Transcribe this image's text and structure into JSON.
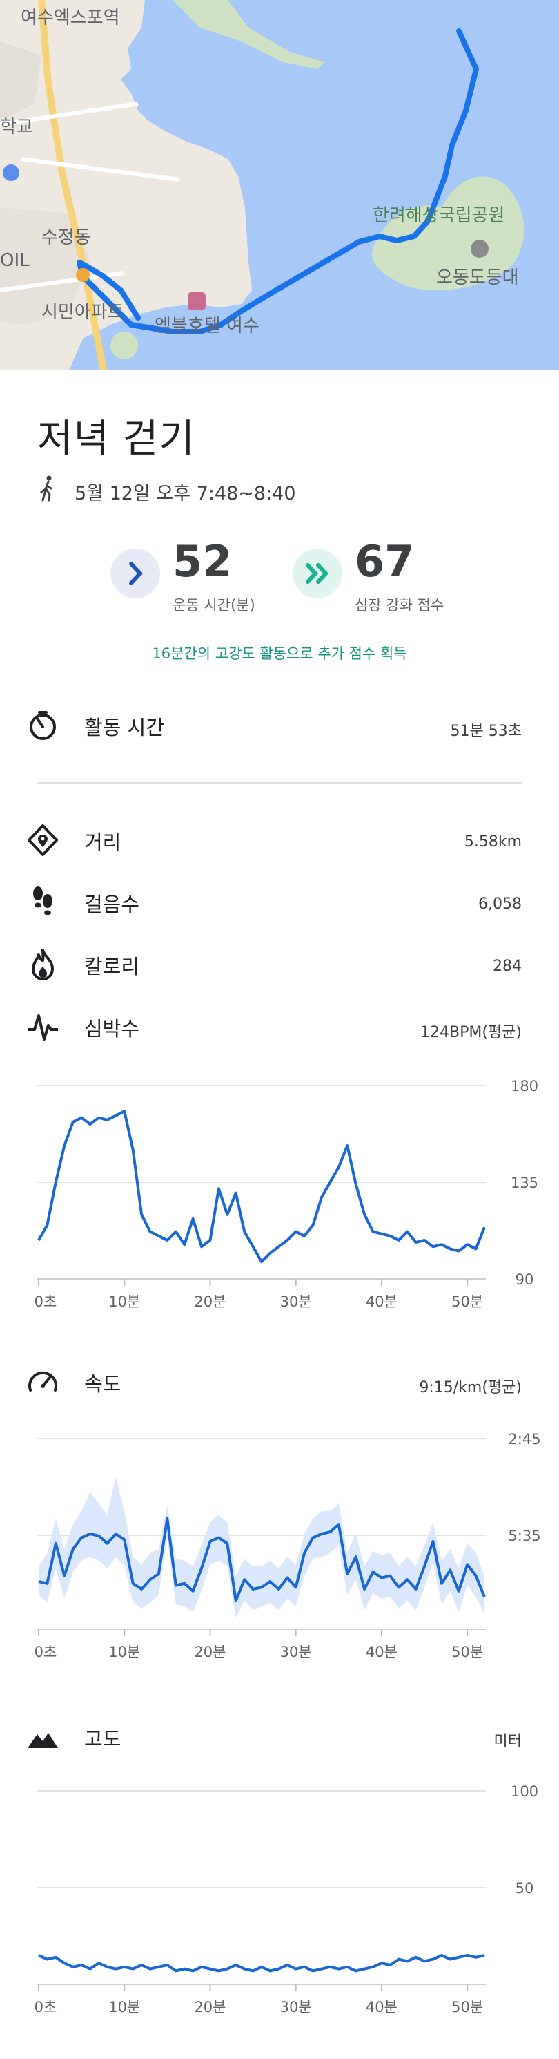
{
  "map": {
    "labels": [
      "여수엑스포역",
      "학교",
      "수정동",
      "OIL",
      "시민아파트",
      "엠블호텔 여수",
      "한려해상국립공원",
      "오동도등대"
    ]
  },
  "activity": {
    "title": "저녁 걷기",
    "datetime": "5월 12일 오후 7:48~8:40"
  },
  "scores": {
    "move_minutes": {
      "value": "52",
      "label": "운동 시간(분)"
    },
    "heart_points": {
      "value": "67",
      "label": "심장 강화 점수"
    },
    "bonus_text": "16분간의 고강도 활동으로 추가 점수 획득"
  },
  "stats": {
    "active_time": {
      "label": "활동 시간",
      "value": "51분 53초"
    },
    "distance": {
      "label": "거리",
      "value": "5.58km"
    },
    "steps": {
      "label": "걸음수",
      "value": "6,058"
    },
    "calories": {
      "label": "칼로리",
      "value": "284"
    },
    "heart_rate": {
      "label": "심박수",
      "value": "124BPM(평균)"
    },
    "speed": {
      "label": "속도",
      "value": "9:15/km(평균)"
    },
    "elevation": {
      "label": "고도",
      "value": "미터"
    }
  },
  "x_ticks": [
    "0초",
    "10분",
    "20분",
    "30분",
    "40분",
    "50분"
  ],
  "chart_data": [
    {
      "type": "line",
      "x": [
        0,
        1,
        2,
        3,
        4,
        5,
        6,
        7,
        8,
        9,
        10,
        11,
        12,
        13,
        14,
        15,
        16,
        17,
        18,
        19,
        20,
        21,
        22,
        23,
        24,
        25,
        26,
        27,
        28,
        29,
        30,
        31,
        32,
        33,
        34,
        35,
        36,
        37,
        38,
        39,
        40,
        41,
        42,
        43,
        44,
        45,
        46,
        47,
        48,
        49,
        50,
        51,
        52
      ],
      "y": [
        108,
        115,
        135,
        152,
        163,
        165,
        162,
        165,
        164,
        166,
        168,
        150,
        120,
        112,
        110,
        108,
        112,
        106,
        118,
        105,
        108,
        132,
        120,
        130,
        112,
        105,
        98,
        102,
        105,
        108,
        112,
        110,
        115,
        128,
        135,
        142,
        152,
        134,
        120,
        112,
        111,
        110,
        108,
        112,
        107,
        108,
        105,
        106,
        104,
        103,
        106,
        104,
        114
      ],
      "y_ticks": [
        "180",
        "135",
        "90"
      ],
      "ylim": [
        90,
        180
      ],
      "color": "#1967d2"
    },
    {
      "type": "area",
      "x": [
        0,
        1,
        2,
        3,
        4,
        5,
        6,
        7,
        8,
        9,
        10,
        11,
        12,
        13,
        14,
        15,
        16,
        17,
        18,
        19,
        20,
        21,
        22,
        23,
        24,
        25,
        26,
        27,
        28,
        29,
        30,
        31,
        32,
        33,
        34,
        35,
        36,
        37,
        38,
        39,
        40,
        41,
        42,
        43,
        44,
        45,
        46,
        47,
        48,
        49,
        50,
        51,
        52
      ],
      "y_label_ticks": [
        "2:45",
        "5:35"
      ],
      "values": [
        0.25,
        0.24,
        0.45,
        0.28,
        0.42,
        0.48,
        0.5,
        0.49,
        0.45,
        0.5,
        0.47,
        0.24,
        0.21,
        0.26,
        0.29,
        0.58,
        0.23,
        0.24,
        0.2,
        0.32,
        0.46,
        0.48,
        0.45,
        0.15,
        0.26,
        0.21,
        0.22,
        0.25,
        0.21,
        0.27,
        0.22,
        0.4,
        0.48,
        0.5,
        0.51,
        0.55,
        0.29,
        0.38,
        0.21,
        0.3,
        0.27,
        0.28,
        0.22,
        0.26,
        0.21,
        0.33,
        0.46,
        0.24,
        0.31,
        0.2,
        0.34,
        0.28,
        0.17
      ],
      "band_upper": [
        0.33,
        0.4,
        0.58,
        0.42,
        0.55,
        0.62,
        0.72,
        0.66,
        0.6,
        0.8,
        0.62,
        0.38,
        0.34,
        0.4,
        0.42,
        0.65,
        0.37,
        0.36,
        0.33,
        0.44,
        0.56,
        0.6,
        0.56,
        0.28,
        0.37,
        0.33,
        0.33,
        0.36,
        0.32,
        0.38,
        0.34,
        0.5,
        0.58,
        0.62,
        0.62,
        0.66,
        0.4,
        0.5,
        0.33,
        0.41,
        0.39,
        0.4,
        0.33,
        0.38,
        0.33,
        0.44,
        0.56,
        0.36,
        0.42,
        0.32,
        0.45,
        0.4,
        0.28
      ],
      "band_lower": [
        0.18,
        0.14,
        0.32,
        0.16,
        0.3,
        0.36,
        0.38,
        0.36,
        0.32,
        0.38,
        0.33,
        0.14,
        0.11,
        0.14,
        0.18,
        0.48,
        0.13,
        0.12,
        0.09,
        0.2,
        0.34,
        0.36,
        0.33,
        0.06,
        0.15,
        0.1,
        0.12,
        0.14,
        0.1,
        0.16,
        0.12,
        0.28,
        0.37,
        0.38,
        0.4,
        0.44,
        0.18,
        0.26,
        0.1,
        0.19,
        0.16,
        0.17,
        0.11,
        0.15,
        0.1,
        0.22,
        0.35,
        0.13,
        0.2,
        0.09,
        0.23,
        0.17,
        0.08
      ],
      "color": "#1967d2",
      "band_color": "#dbe8fb"
    },
    {
      "type": "line",
      "x": [
        0,
        1,
        2,
        3,
        4,
        5,
        6,
        7,
        8,
        9,
        10,
        11,
        12,
        13,
        14,
        15,
        16,
        17,
        18,
        19,
        20,
        21,
        22,
        23,
        24,
        25,
        26,
        27,
        28,
        29,
        30,
        31,
        32,
        33,
        34,
        35,
        36,
        37,
        38,
        39,
        40,
        41,
        42,
        43,
        44,
        45,
        46,
        47,
        48,
        49,
        50,
        51,
        52
      ],
      "y": [
        15,
        13,
        14,
        11,
        9,
        10,
        8,
        11,
        9,
        8,
        9,
        8,
        10,
        8,
        9,
        10,
        7,
        8,
        7,
        9,
        8,
        7,
        8,
        10,
        8,
        7,
        9,
        7,
        8,
        10,
        8,
        9,
        7,
        8,
        9,
        8,
        9,
        7,
        8,
        9,
        11,
        10,
        13,
        12,
        14,
        12,
        13,
        15,
        13,
        14,
        15,
        14,
        15
      ],
      "y_ticks": [
        "100",
        "50"
      ],
      "ylim": [
        0,
        100
      ],
      "color": "#1967d2"
    }
  ]
}
